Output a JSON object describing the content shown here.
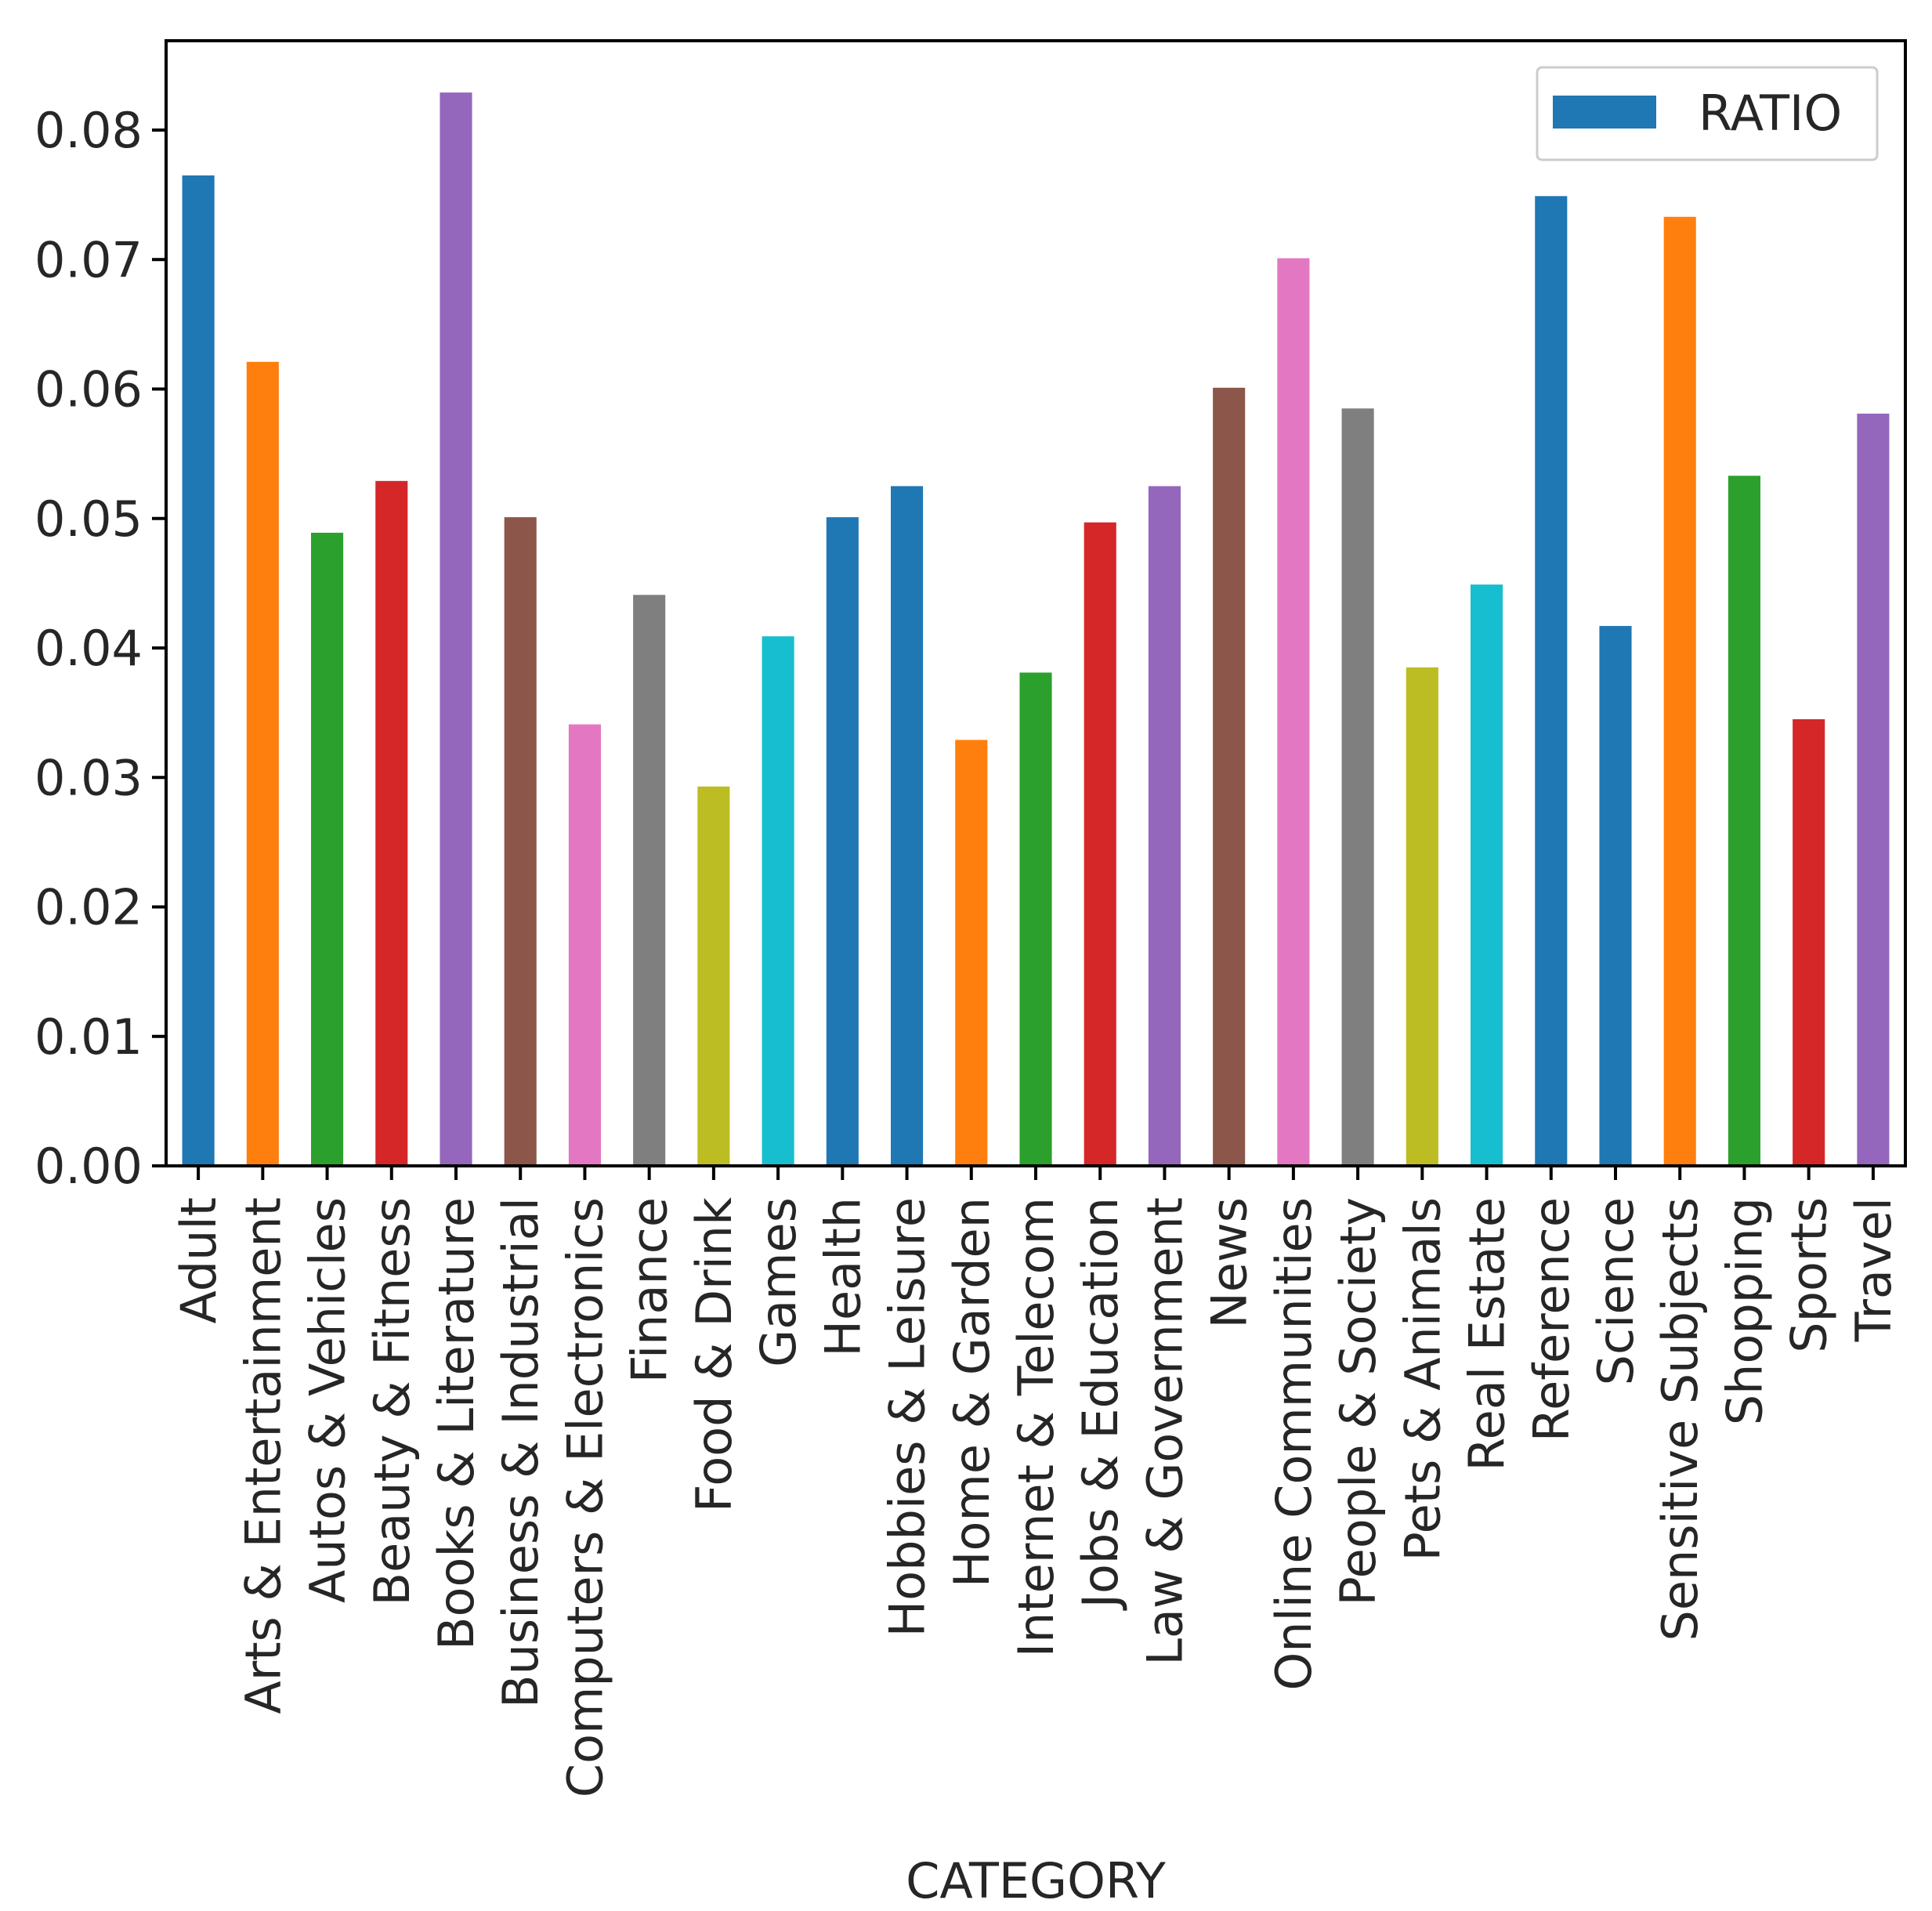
{
  "chart_data": {
    "type": "bar",
    "title": "",
    "xlabel": "CATEGORY",
    "ylabel": "",
    "ylim": [
      0,
      0.0869
    ],
    "yticks": [
      0.0,
      0.01,
      0.02,
      0.03,
      0.04,
      0.05,
      0.06,
      0.07,
      0.08
    ],
    "ytick_labels": [
      "0.00",
      "0.01",
      "0.02",
      "0.03",
      "0.04",
      "0.05",
      "0.06",
      "0.07",
      "0.08"
    ],
    "legend": {
      "position": "top-right",
      "label": "RATIO",
      "color": "#1f77b4"
    },
    "series": [
      {
        "name": "RATIO"
      }
    ],
    "categories": [
      "Adult",
      "Arts & Entertainment",
      "Autos & Vehicles",
      "Beauty & Fitness",
      "Books & Literature",
      "Business & Industrial",
      "Computers & Electronics",
      "Finance",
      "Food & Drink",
      "Games",
      "Health",
      "Hobbies & Leisure",
      "Home & Garden",
      "Internet & Telecom",
      "Jobs & Education",
      "Law & Government",
      "News",
      "Online Communities",
      "People & Society",
      "Pets & Animals",
      "Real Estate",
      "Reference",
      "Science",
      "Sensitive Subjects",
      "Shopping",
      "Sports",
      "Travel"
    ],
    "values": [
      0.0765,
      0.0621,
      0.0489,
      0.0529,
      0.0829,
      0.0501,
      0.0341,
      0.0441,
      0.0293,
      0.0409,
      0.0501,
      0.0525,
      0.0329,
      0.0381,
      0.0497,
      0.0525,
      0.0601,
      0.0701,
      0.0585,
      0.0385,
      0.0449,
      0.0749,
      0.0417,
      0.0733,
      0.0533,
      0.0345,
      0.0581
    ],
    "colors": [
      "#1f77b4",
      "#ff7f0e",
      "#2ca02c",
      "#d62728",
      "#9467bd",
      "#8c564b",
      "#e377c2",
      "#7f7f7f",
      "#bcbd22",
      "#17becf",
      "#1f77b4",
      "#1f77b4",
      "#ff7f0e",
      "#2ca02c",
      "#d62728",
      "#9467bd",
      "#8c564b",
      "#e377c2",
      "#7f7f7f",
      "#bcbd22",
      "#17becf",
      "#1f77b4",
      "#1f77b4",
      "#ff7f0e",
      "#2ca02c",
      "#d62728",
      "#9467bd"
    ]
  }
}
